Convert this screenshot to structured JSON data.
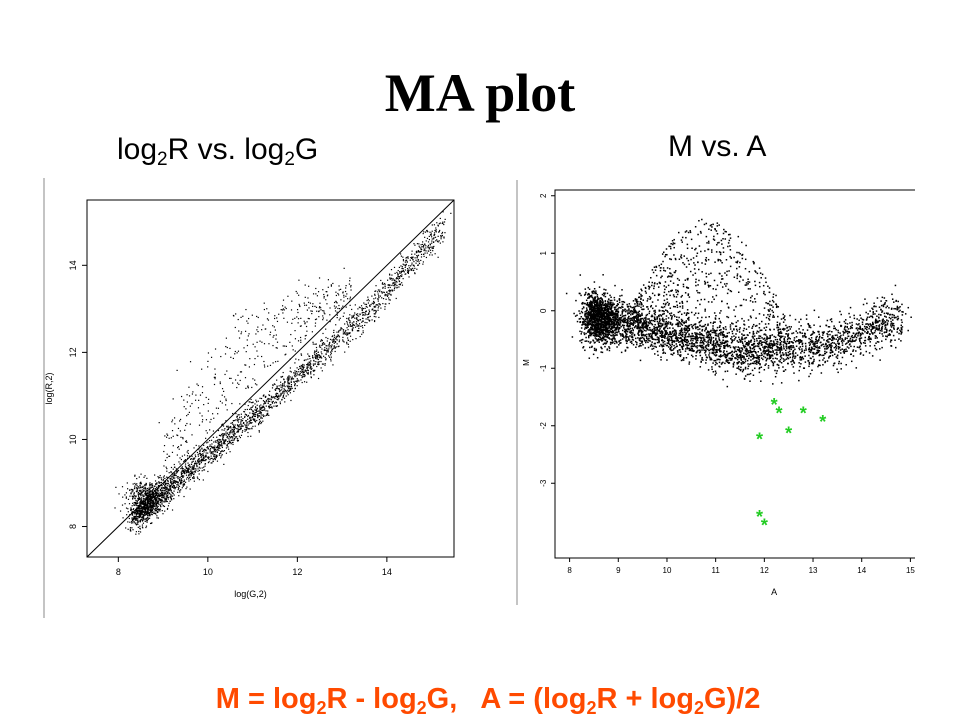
{
  "slide": {
    "title": "MA plot",
    "left_heading": {
      "a": "log",
      "a_sub": "2",
      "b": "R vs. log",
      "b_sub": "2",
      "c": "G"
    },
    "right_heading": "M vs. A",
    "formula": {
      "p1": "M = log",
      "s1": "2",
      "p2": "R - log",
      "s2": "2",
      "p3": "G,   A = (log",
      "s3": "2",
      "p4": "R + log",
      "s4": "2",
      "p5": "G)/2",
      "color": "#ff4a00"
    }
  },
  "chart_data": [
    {
      "type": "scatter",
      "title": "",
      "xlabel": "log(G,2)",
      "ylabel": "log(R,2)",
      "xlim": [
        7.3,
        15.5
      ],
      "ylim": [
        7.3,
        15.5
      ],
      "xticks": [
        8,
        10,
        12,
        14
      ],
      "yticks": [
        8,
        10,
        12,
        14
      ],
      "reference_line": {
        "slope": 1,
        "intercept": 0
      },
      "point_color": "#000000",
      "series": [
        {
          "description_points": [
            [
              8.5,
              8.6
            ],
            [
              8.7,
              8.7
            ],
            [
              9.0,
              8.9
            ],
            [
              9.5,
              9.3
            ],
            [
              10.0,
              9.8
            ],
            [
              10.5,
              10.2
            ],
            [
              11.0,
              10.6
            ],
            [
              11.5,
              11.0
            ],
            [
              12.0,
              11.5
            ],
            [
              12.5,
              11.9
            ],
            [
              13.0,
              12.3
            ],
            [
              13.5,
              12.7
            ],
            [
              14.0,
              13.3
            ],
            [
              14.5,
              13.9
            ],
            [
              15.0,
              14.4
            ],
            [
              15.1,
              14.6
            ],
            [
              9.3,
              11.6
            ],
            [
              9.6,
              11.8
            ],
            [
              10.0,
              12.0
            ],
            [
              10.5,
              11.9
            ],
            [
              11.0,
              12.2
            ],
            [
              11.5,
              11.8
            ],
            [
              12.2,
              12.5
            ],
            [
              12.6,
              12.9
            ],
            [
              13.2,
              13.0
            ],
            [
              8.9,
              10.4
            ],
            [
              9.4,
              11.0
            ]
          ]
        }
      ]
    },
    {
      "type": "scatter",
      "title": "",
      "xlabel": "A",
      "ylabel": "M",
      "xlim": [
        7.7,
        15.3
      ],
      "ylim": [
        -4.3,
        2.1
      ],
      "xticks": [
        8,
        9,
        10,
        11,
        12,
        13,
        14,
        15
      ],
      "yticks": [
        -3,
        -2,
        -1,
        0,
        1,
        2
      ],
      "point_color": "#000000",
      "highlight_color": "#22cc22",
      "series": [
        {
          "name": "",
          "description_points": [
            [
              8.5,
              -0.1
            ],
            [
              9.0,
              -0.3
            ],
            [
              9.5,
              -0.4
            ],
            [
              10.0,
              -0.5
            ],
            [
              10.5,
              -0.6
            ],
            [
              11.0,
              -0.7
            ],
            [
              11.5,
              -0.75
            ],
            [
              12.0,
              -0.7
            ],
            [
              12.5,
              -0.65
            ],
            [
              13.0,
              -0.6
            ],
            [
              13.5,
              -0.5
            ],
            [
              14.0,
              -0.3
            ],
            [
              14.5,
              -0.15
            ],
            [
              15.0,
              -0.1
            ],
            [
              10.0,
              0.6
            ],
            [
              10.5,
              1.1
            ],
            [
              11.0,
              1.4
            ],
            [
              10.7,
              1.6
            ],
            [
              11.5,
              0.6
            ],
            [
              9.8,
              0.2
            ]
          ]
        },
        {
          "name": "",
          "points": [
            [
              12.2,
              -1.6
            ],
            [
              12.3,
              -1.75
            ],
            [
              12.8,
              -1.75
            ],
            [
              13.2,
              -1.9
            ],
            [
              12.5,
              -2.1
            ],
            [
              11.9,
              -2.2
            ],
            [
              11.9,
              -3.55
            ],
            [
              12.0,
              -3.7
            ]
          ]
        }
      ]
    }
  ]
}
